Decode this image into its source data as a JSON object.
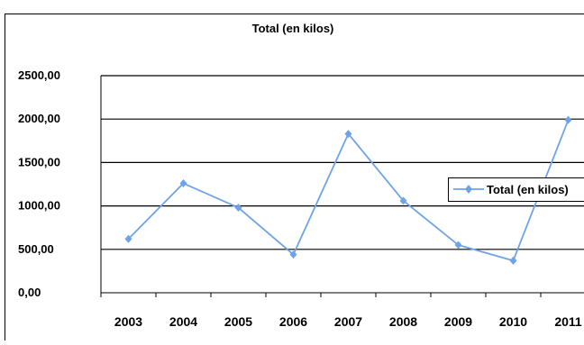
{
  "chart_data": {
    "type": "line",
    "title": "Total (en kilos)",
    "xlabel": "",
    "ylabel": "",
    "categories": [
      "2003",
      "2004",
      "2005",
      "2006",
      "2007",
      "2008",
      "2009",
      "2010",
      "2011"
    ],
    "series": [
      {
        "name": "Total (en kilos)",
        "values": [
          620,
          1260,
          980,
          440,
          1830,
          1060,
          550,
          370,
          1990
        ],
        "color": "#6fa3e8",
        "marker": "diamond"
      }
    ],
    "ylim": [
      0,
      2500
    ],
    "yticks": [
      "0,00",
      "500,00",
      "1000,00",
      "1500,00",
      "2000,00",
      "2500,00"
    ],
    "grid": true,
    "legend": "right"
  }
}
